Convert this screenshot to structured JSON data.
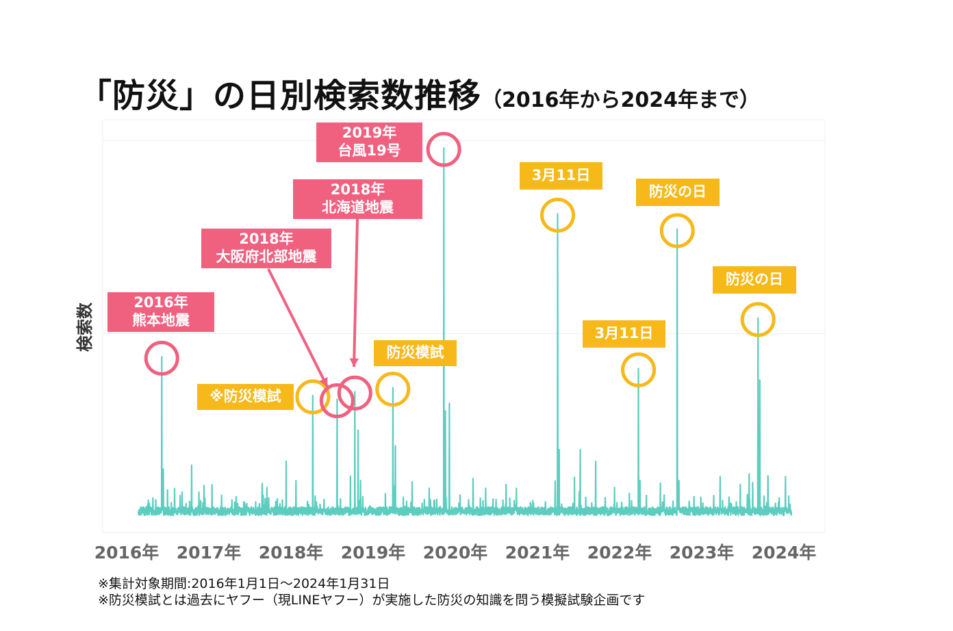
{
  "title": {
    "main": "「防災」の日別検索数推移",
    "sub": "（2016年から2024年まで）"
  },
  "colors": {
    "line": "#5ccdbf",
    "red_label": "#f0607f",
    "yellow_label": "#f7b81a",
    "grid": "#eeeeee",
    "axis_text": "#666666"
  },
  "chart_data": {
    "type": "line",
    "title": "「防災」の日別検索数推移（2016年から2024年まで）",
    "xlabel": "",
    "ylabel": "検索数",
    "x_range": [
      2016.0,
      2024.083
    ],
    "ylim": [
      0,
      100
    ],
    "grid": true,
    "x_ticks": [
      "2016年",
      "2017年",
      "2018年",
      "2019年",
      "2020年",
      "2021年",
      "2022年",
      "2023年",
      "2024年"
    ],
    "series": [
      {
        "name": "防災",
        "baseline": 3,
        "peaks": [
          {
            "x": 2016.29,
            "y": 44
          },
          {
            "x": 2016.31,
            "y": 15
          },
          {
            "x": 2016.66,
            "y": 16
          },
          {
            "x": 2016.75,
            "y": 9
          },
          {
            "x": 2017.16,
            "y": 7
          },
          {
            "x": 2017.5,
            "y": 6
          },
          {
            "x": 2017.83,
            "y": 17
          },
          {
            "x": 2017.95,
            "y": 12
          },
          {
            "x": 2018.16,
            "y": 34
          },
          {
            "x": 2018.19,
            "y": 8
          },
          {
            "x": 2018.46,
            "y": 33
          },
          {
            "x": 2018.68,
            "y": 35
          },
          {
            "x": 2018.72,
            "y": 25
          },
          {
            "x": 2018.75,
            "y": 12
          },
          {
            "x": 2019.15,
            "y": 36
          },
          {
            "x": 2019.18,
            "y": 21
          },
          {
            "x": 2019.6,
            "y": 10
          },
          {
            "x": 2019.78,
            "y": 98
          },
          {
            "x": 2019.8,
            "y": 30
          },
          {
            "x": 2019.85,
            "y": 32
          },
          {
            "x": 2020.3,
            "y": 10
          },
          {
            "x": 2020.55,
            "y": 11
          },
          {
            "x": 2020.68,
            "y": 10
          },
          {
            "x": 2021.19,
            "y": 81
          },
          {
            "x": 2021.21,
            "y": 20
          },
          {
            "x": 2021.47,
            "y": 20
          },
          {
            "x": 2021.66,
            "y": 17
          },
          {
            "x": 2022.19,
            "y": 41
          },
          {
            "x": 2022.21,
            "y": 12
          },
          {
            "x": 2022.67,
            "y": 77
          },
          {
            "x": 2022.69,
            "y": 12
          },
          {
            "x": 2023.2,
            "y": 13
          },
          {
            "x": 2023.45,
            "y": 11
          },
          {
            "x": 2023.67,
            "y": 54
          },
          {
            "x": 2023.69,
            "y": 38
          },
          {
            "x": 2024.01,
            "y": 13
          },
          {
            "x": 2024.05,
            "y": 8
          }
        ]
      }
    ],
    "annotations": [
      {
        "label": "2016年\n熊本地震",
        "color": "red",
        "x": 2016.29,
        "y": 44
      },
      {
        "label": "※防災模試",
        "color": "yellow",
        "x": 2018.16,
        "y": 34
      },
      {
        "label": "2018年\n大阪府北部地震",
        "color": "red",
        "x": 2018.46,
        "y": 33
      },
      {
        "label": "2018年\n北海道地震",
        "color": "red",
        "x": 2018.68,
        "y": 35
      },
      {
        "label": "防災模試",
        "color": "yellow",
        "x": 2019.15,
        "y": 36
      },
      {
        "label": "2019年\n台風19号",
        "color": "red",
        "x": 2019.78,
        "y": 98
      },
      {
        "label": "3月11日",
        "color": "yellow",
        "x": 2021.19,
        "y": 81
      },
      {
        "label": "3月11日",
        "color": "yellow",
        "x": 2022.19,
        "y": 41
      },
      {
        "label": "防災の日",
        "color": "yellow",
        "x": 2022.67,
        "y": 77
      },
      {
        "label": "防災の日",
        "color": "yellow",
        "x": 2023.67,
        "y": 54
      }
    ]
  },
  "footnotes": [
    "※集計対象期間:2016年1月1日〜2024年1月31日",
    "※防災模試とは過去にヤフー（現LINEヤフー）が実施した防災の知識を問う模擬試験企画です"
  ]
}
